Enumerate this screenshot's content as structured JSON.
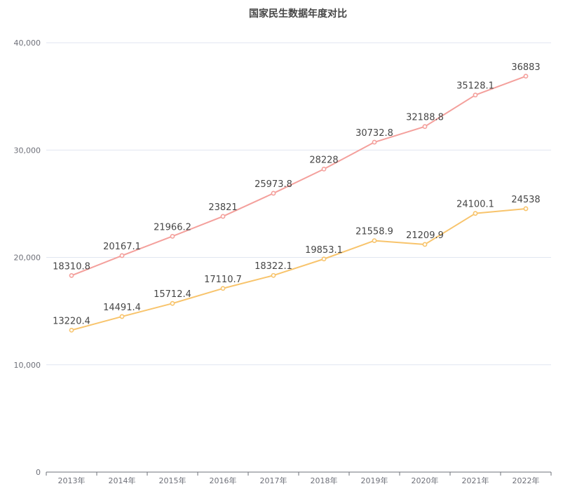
{
  "chart_data": {
    "type": "line",
    "title": "国家民生数据年度对比",
    "categories": [
      "2013年",
      "2014年",
      "2015年",
      "2016年",
      "2017年",
      "2018年",
      "2019年",
      "2020年",
      "2021年",
      "2022年"
    ],
    "series": [
      {
        "values": [
          18310.8,
          20167.1,
          21966.2,
          23821,
          25973.8,
          28228,
          30732.8,
          32188.8,
          35128.1,
          36883
        ],
        "labels": [
          "18310.8",
          "20167.1",
          "21966.2",
          "23821",
          "25973.8",
          "28228",
          "30732.8",
          "32188.8",
          "35128.1",
          "36883"
        ],
        "color": "#f4a09c"
      },
      {
        "values": [
          13220.4,
          14491.4,
          15712.4,
          17110.7,
          18322.1,
          19853.1,
          21558.9,
          21209.9,
          24100.1,
          24538
        ],
        "labels": [
          "13220.4",
          "14491.4",
          "15712.4",
          "17110.7",
          "18322.1",
          "19853.1",
          "21558.9",
          "21209.9",
          "24100.1",
          "24538"
        ],
        "color": "#f8c46c"
      }
    ],
    "ylim": [
      0,
      40000
    ],
    "yticks": [
      0,
      10000,
      20000,
      30000,
      40000
    ],
    "ytick_labels": [
      "0",
      "10,000",
      "20,000",
      "30,000",
      "40,000"
    ],
    "grid": true,
    "legend": "none"
  }
}
